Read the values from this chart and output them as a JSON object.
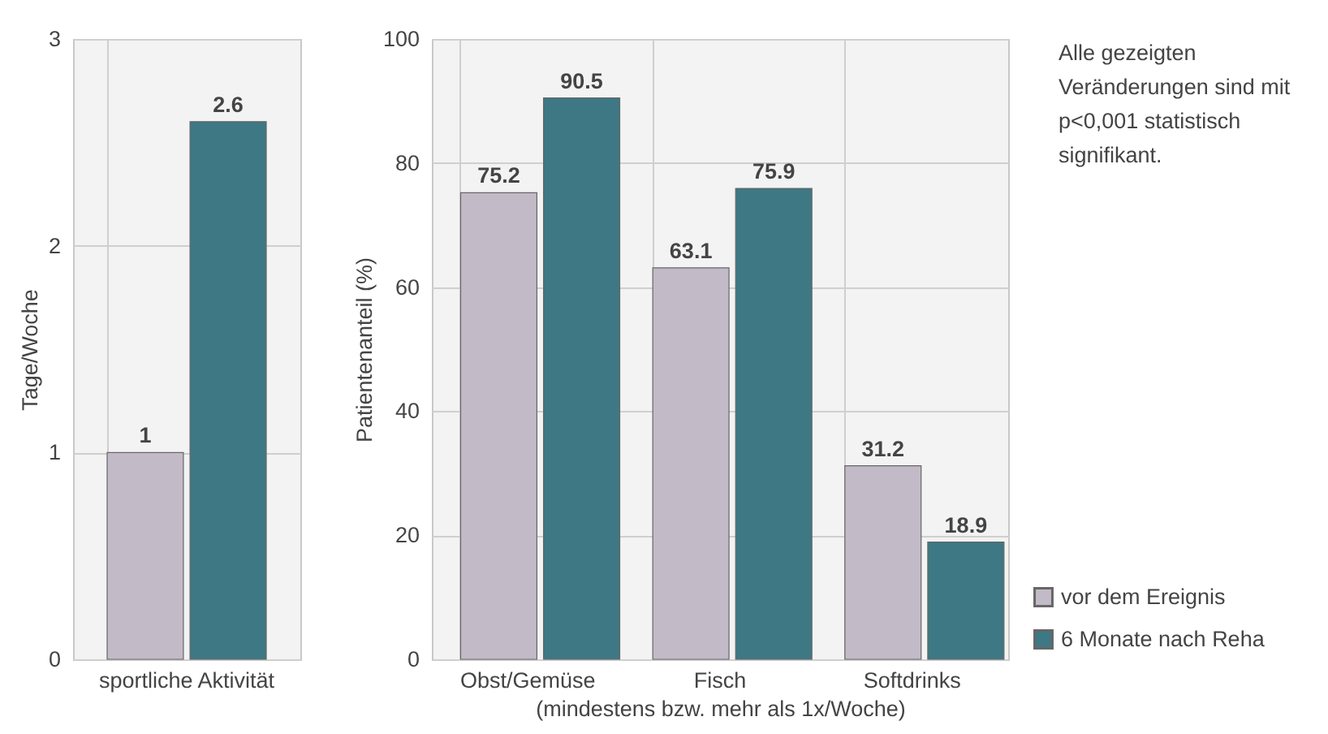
{
  "chart_data": [
    {
      "type": "bar",
      "categories": [
        "sportliche Aktivität"
      ],
      "ylabel": "Tage/Woche",
      "ylim": [
        0,
        3
      ],
      "yticks": [
        0,
        1,
        2,
        3
      ],
      "grid": true,
      "data_labels": true,
      "series": [
        {
          "color": "#c3bac8",
          "values": [
            1
          ]
        },
        {
          "color": "#3d7884",
          "values": [
            2.6
          ]
        }
      ]
    },
    {
      "type": "bar",
      "categories": [
        "Obst/Gemüse",
        "Fisch",
        "Softdrinks"
      ],
      "ylabel": "Patientenanteil (%)",
      "xlabel": "(mindestens bzw. mehr als 1x/Woche)",
      "ylim": [
        0,
        100
      ],
      "yticks": [
        0,
        20,
        40,
        60,
        80,
        100
      ],
      "grid": true,
      "data_labels": true,
      "legend": "bottom right",
      "annotations": [
        "Alle gezeigten Veränderungen sind mit p<0,001 statistisch signifikant."
      ],
      "series": [
        {
          "name": "vor dem Ereignis",
          "color": "#c3bac8",
          "values": [
            75.2,
            63.1,
            31.2
          ]
        },
        {
          "name": "6 Monate nach Reha",
          "color": "#3d7884",
          "values": [
            90.5,
            75.9,
            18.9
          ]
        }
      ]
    }
  ]
}
